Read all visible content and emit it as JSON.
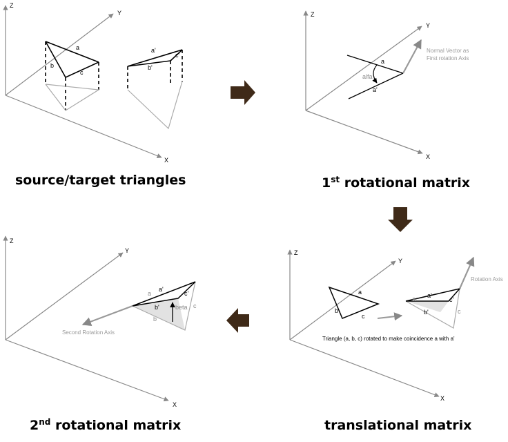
{
  "panels": [
    {
      "caption": "source/target triangles"
    },
    {
      "caption_num": "1",
      "caption_sup": "st",
      "caption_rest": "rotational  matrix"
    },
    {
      "caption_num": "2",
      "caption_sup": "nd",
      "caption_rest": "rotational  matrix"
    },
    {
      "caption": "translational  matrix"
    }
  ],
  "axes": {
    "z": "Z",
    "y": "Y",
    "x": "X"
  },
  "labels": {
    "a": "a",
    "b": "b",
    "c": "c",
    "a_prime": "a'",
    "b_prime": "b'",
    "c_prime": "c'",
    "alfa": "alfa",
    "beta": "beta"
  },
  "annotations": {
    "normal_vector_line1": "Normal Vector as",
    "normal_vector_line2": "First rotation Axis",
    "rotation_axis": "Rotation Axis",
    "second_rotation_axis": "Second Rotation Axis",
    "triangle_note": "Triangle (a, b, c) rotated to make coincidence a with a'"
  },
  "colors": {
    "arrow": "#3f2a18",
    "axis": "#888888",
    "gray_edge": "#a8a8a8",
    "shade": "#e2e2e2"
  }
}
